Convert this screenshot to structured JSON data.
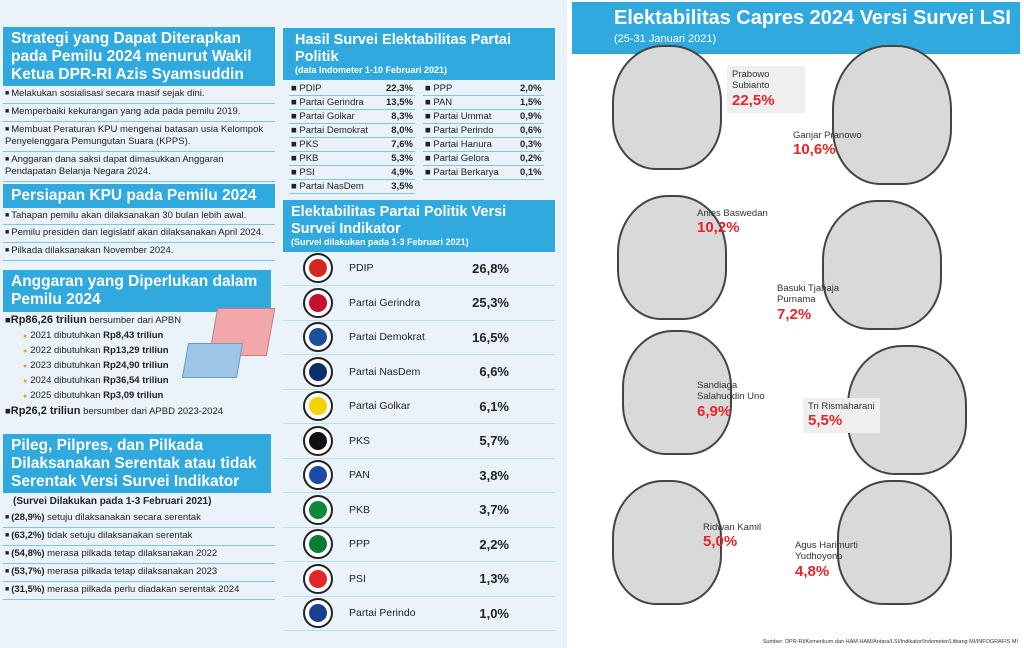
{
  "strategi": {
    "title": "Strategi yang Dapat Diterapkan pada Pemilu 2024 menurut Wakil Ketua DPR-RI Azis Syamsuddin",
    "items": [
      "Melakukan sosialisasi secara masif sejak dini.",
      "Memperbaiki kekurangan yang ada pada pemilu 2019.",
      "Membuat Peraturan KPU mengenai batasan usia Kelompok Penyelenggara Pemungutan Suara (KPPS).",
      "Anggaran dana saksi dapat dimasukkan Anggaran Pendapatan Belanja Negara 2024."
    ]
  },
  "persiapan": {
    "title": "Persiapan KPU pada Pemilu 2024",
    "items": [
      "Tahapan pemilu akan dilaksanakan 30 bulan lebih awal.",
      "Pemilu presiden dan legislatif akan dilaksanakan April 2024.",
      "Pilkada dilaksanakan November 2024."
    ]
  },
  "anggaran": {
    "title": "Anggaran yang Diperlukan dalam Pemilu 2024",
    "apbn": {
      "amount": "Rp86,26 triliun",
      "text": "bersumber dari APBN"
    },
    "years": [
      {
        "label": "2021 dibutuhkan",
        "amount": "Rp8,43 triliun"
      },
      {
        "label": "2022 dibutuhkan",
        "amount": "Rp13,29 triliun"
      },
      {
        "label": "2023 dibutuhkan",
        "amount": "Rp24,90 triliun"
      },
      {
        "label": "2024 dibutuhkan",
        "amount": "Rp36,54 triliun"
      },
      {
        "label": "2025 dibutuhkan",
        "amount": "Rp3,09 triliun"
      }
    ],
    "apbd": {
      "amount": "Rp26,2 triliun",
      "text": "bersumber dari APBD 2023-2024"
    }
  },
  "serentak": {
    "title": "Pileg, Pilpres, dan Pilkada Dilaksanakan Serentak atau tidak Serentak Versi Survei Indikator",
    "subtitle": "(Survei Dilakukan pada 1-3 Februari 2021)",
    "items": [
      {
        "pct": "(28,9%)",
        "text": "setuju dilaksanakan secara serentak"
      },
      {
        "pct": "(63,2%)",
        "text": "tidak setuju dilaksanakan serentak"
      },
      {
        "pct": "(54,8%)",
        "text": "merasa pilkada tetap dilaksanakan 2022"
      },
      {
        "pct": "(53,7%)",
        "text": "merasa pilkada tetap dilaksanakan 2023"
      },
      {
        "pct": "(31,5%)",
        "text": "merasa pilkada perlu diadakan serentak 2024"
      }
    ]
  },
  "indometer": {
    "title": "Hasil Survei Elektabilitas Partai Politik",
    "subtitle": "(data Indometer 1-10 Februari 2021)",
    "left": [
      [
        "PDIP",
        "22,3%"
      ],
      [
        "Partai Gerindra",
        "13,5%"
      ],
      [
        "Partai Golkar",
        "8,3%"
      ],
      [
        "Partai Demokrat",
        "8,0%"
      ],
      [
        "PKS",
        "7,6%"
      ],
      [
        "PKB",
        "5,3%"
      ],
      [
        "PSI",
        "4,9%"
      ],
      [
        "Partai NasDem",
        "3,5%"
      ]
    ],
    "right": [
      [
        "PPP",
        "2,0%"
      ],
      [
        "PAN",
        "1,5%"
      ],
      [
        "Partai Ummat",
        "0,9%"
      ],
      [
        "Partai Perindo",
        "0,6%"
      ],
      [
        "Partai Hanura",
        "0,3%"
      ],
      [
        "Partai Gelora",
        "0,2%"
      ],
      [
        "Partai Berkarya",
        "0,1%"
      ]
    ]
  },
  "indikator": {
    "title": "Elektabilitas Partai Politik Versi Survei Indikator",
    "subtitle": "(Survei dilakukan pada 1-3 Februari 2021)",
    "parties": [
      {
        "name": "PDIP",
        "pct": "26,8%",
        "color": "#d7261e"
      },
      {
        "name": "Partai Gerindra",
        "pct": "25,3%",
        "color": "#c8102e"
      },
      {
        "name": "Partai Demokrat",
        "pct": "16,5%",
        "color": "#1f4e9c"
      },
      {
        "name": "Partai NasDem",
        "pct": "6,6%",
        "color": "#0b2f6b"
      },
      {
        "name": "Partai Golkar",
        "pct": "6,1%",
        "color": "#f2d400"
      },
      {
        "name": "PKS",
        "pct": "5,7%",
        "color": "#111"
      },
      {
        "name": "PAN",
        "pct": "3,8%",
        "color": "#1c4aa6"
      },
      {
        "name": "PKB",
        "pct": "3,7%",
        "color": "#0a8a3a"
      },
      {
        "name": "PPP",
        "pct": "2,2%",
        "color": "#0a7a34"
      },
      {
        "name": "PSI",
        "pct": "1,3%",
        "color": "#e4262c"
      },
      {
        "name": "Partai Perindo",
        "pct": "1,0%",
        "color": "#1b3f8f"
      }
    ]
  },
  "lsi": {
    "title": "Elektabilitas Capres 2024 Versi Survei LSI",
    "subtitle": "(25-31 Januari 2021)",
    "candidates": [
      {
        "name": "Prabowo Subianto",
        "pct": "22,5%"
      },
      {
        "name": "Ganjar Pranowo",
        "pct": "10,6%"
      },
      {
        "name": "Anies Baswedan",
        "pct": "10,2%"
      },
      {
        "name": "Basuki Tjahaja Purnama",
        "pct": "7,2%"
      },
      {
        "name": "Sandiaga Salahuddin Uno",
        "pct": "6,9%"
      },
      {
        "name": "Tri Rismaharani",
        "pct": "5,5%"
      },
      {
        "name": "Ridwan Kamil",
        "pct": "5,0%"
      },
      {
        "name": "Agus Harimurti Yudhoyono",
        "pct": "4,8%"
      }
    ],
    "source": "Sumber: DPR-RI/Kemenkum dan HAM HAM/Antara/LSI/Indikator/Indometer/Litbang MI/INFOGRAFIS MI"
  },
  "colors": {
    "header": "#2fa9de",
    "highlight": "#e4262c",
    "background": "#e9f3f9"
  }
}
